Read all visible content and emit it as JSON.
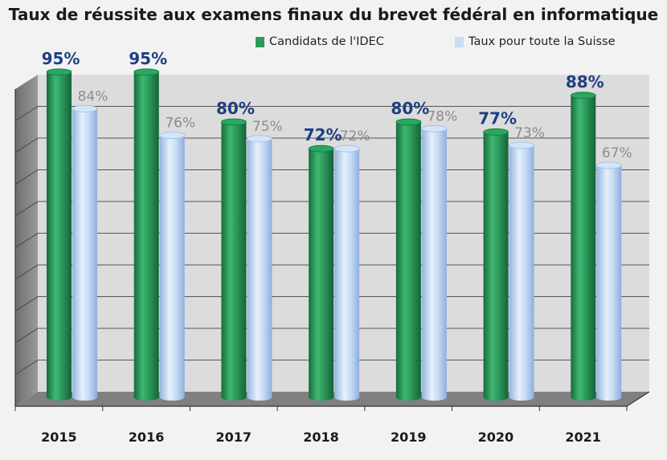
{
  "chart_data": {
    "type": "bar",
    "title": "Taux de réussite aux examens finaux du brevet fédéral en informatique",
    "categories": [
      "2015",
      "2016",
      "2017",
      "2018",
      "2019",
      "2020",
      "2021"
    ],
    "series": [
      {
        "name": "Candidats de l'IDEC",
        "values": [
          95,
          95,
          80,
          72,
          80,
          77,
          88
        ],
        "labels": [
          "95%",
          "95%",
          "80%",
          "72%",
          "80%",
          "77%",
          "88%"
        ],
        "color": "#2e9a5a"
      },
      {
        "name": "Taux pour toute la Suisse",
        "values": [
          84,
          76,
          75,
          72,
          78,
          73,
          67
        ],
        "labels": [
          "84%",
          "76%",
          "75%",
          "72%",
          "78%",
          "73%",
          "67%"
        ],
        "color": "#c8dcf5"
      }
    ],
    "ylim": [
      0,
      100
    ],
    "grid": true,
    "legend_position": "top-right",
    "three_d": true
  },
  "colors": {
    "series1_label": "#1f3f82",
    "series2_label": "#8c8c8c",
    "wall": "#dcdcdc",
    "floor": "#808080"
  }
}
